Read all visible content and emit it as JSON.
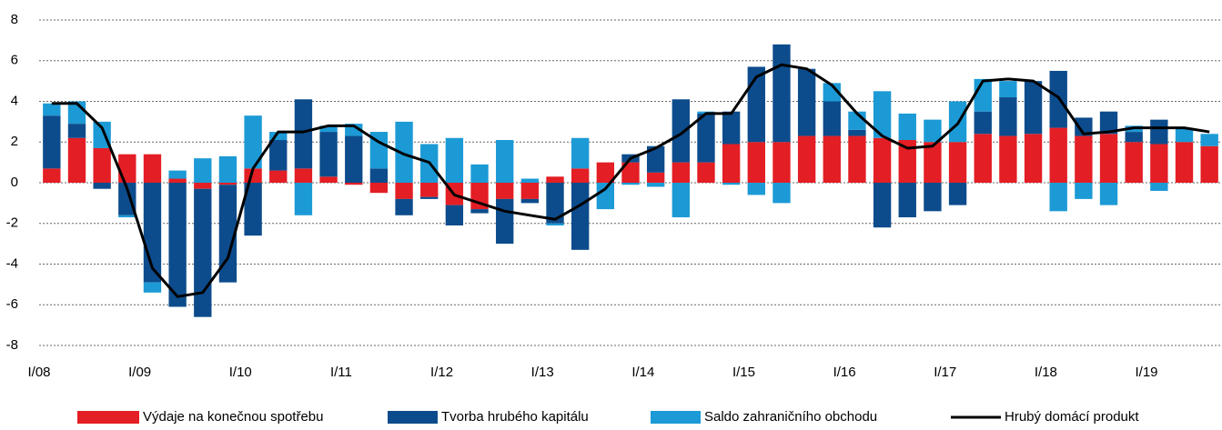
{
  "chart_data": {
    "type": "bar",
    "categories": [
      "I/08",
      null,
      null,
      null,
      "I/09",
      null,
      null,
      null,
      "I/10",
      null,
      null,
      null,
      "I/11",
      null,
      null,
      null,
      "I/12",
      null,
      null,
      null,
      "I/13",
      null,
      null,
      null,
      "I/14",
      null,
      null,
      null,
      "I/15",
      null,
      null,
      null,
      "I/16",
      null,
      null,
      null,
      "I/17",
      null,
      null,
      null,
      "I/18",
      null,
      null,
      null,
      "I/19",
      null,
      null
    ],
    "series": [
      {
        "name": "Výdaje na konečnou spotřebu",
        "color": "#e31e24",
        "values": [
          0.7,
          2.2,
          1.7,
          1.4,
          1.4,
          0.2,
          -0.3,
          -0.1,
          0.7,
          0.6,
          0.7,
          0.3,
          -0.1,
          -0.5,
          -0.8,
          -0.7,
          -1.1,
          -1.3,
          -0.8,
          -0.8,
          0.3,
          0.7,
          1.0,
          1.0,
          0.5,
          1.0,
          1.0,
          1.9,
          2.0,
          2.0,
          2.3,
          2.3,
          2.3,
          2.2,
          2.1,
          2.0,
          2.0,
          2.4,
          2.3,
          2.4,
          2.7,
          2.3,
          2.4,
          2.0,
          1.9,
          2.0,
          1.8
        ]
      },
      {
        "name": "Tvorba hrubého kapitálu",
        "color": "#0d4c8c",
        "values": [
          2.6,
          0.7,
          -0.3,
          -1.6,
          -4.9,
          -6.1,
          -6.3,
          -4.8,
          -2.6,
          1.5,
          3.4,
          2.2,
          2.3,
          0.7,
          -0.8,
          -0.1,
          -1.0,
          -0.2,
          -2.2,
          -0.2,
          -2.0,
          -3.3,
          0.0,
          0.4,
          1.3,
          3.1,
          2.4,
          1.6,
          3.7,
          4.8,
          3.3,
          1.7,
          0.3,
          -2.2,
          -1.7,
          -1.4,
          -1.1,
          1.1,
          1.9,
          2.6,
          2.8,
          0.9,
          1.1,
          0.5,
          1.2,
          0.0,
          0.0
        ]
      },
      {
        "name": "Saldo zahraničního obchodu",
        "color": "#1c9ad6",
        "values": [
          0.6,
          1.1,
          1.3,
          -0.1,
          -0.5,
          0.4,
          1.2,
          1.3,
          2.6,
          0.4,
          -1.6,
          0.3,
          0.6,
          1.8,
          3.0,
          1.9,
          2.2,
          0.9,
          2.1,
          0.2,
          -0.1,
          1.5,
          -1.3,
          -0.1,
          -0.2,
          -1.7,
          0.1,
          -0.1,
          -0.6,
          -1.0,
          0.0,
          0.9,
          0.9,
          2.3,
          1.3,
          1.1,
          2.0,
          1.6,
          0.8,
          0.0,
          -1.4,
          -0.8,
          -1.1,
          0.3,
          -0.4,
          0.7,
          0.6
        ]
      },
      {
        "name": "Hrubý domácí produkt",
        "color": "#000000",
        "type": "line",
        "values": [
          3.9,
          3.9,
          2.7,
          -0.3,
          -4.2,
          -5.6,
          -5.4,
          -3.7,
          0.7,
          2.5,
          2.5,
          2.8,
          2.8,
          2.0,
          1.4,
          1.0,
          -0.6,
          -1.0,
          -1.4,
          -1.6,
          -1.8,
          -1.1,
          -0.3,
          1.2,
          1.7,
          2.4,
          3.4,
          3.4,
          5.2,
          5.8,
          5.6,
          4.8,
          3.4,
          2.3,
          1.7,
          1.8,
          2.9,
          5.0,
          5.1,
          5.0,
          4.2,
          2.4,
          2.5,
          2.7,
          2.7,
          2.7,
          2.5
        ]
      }
    ],
    "ylim": [
      -8,
      8
    ],
    "yticks": [
      -8,
      -6,
      -4,
      -2,
      0,
      2,
      4,
      6,
      8
    ],
    "grid": true
  }
}
